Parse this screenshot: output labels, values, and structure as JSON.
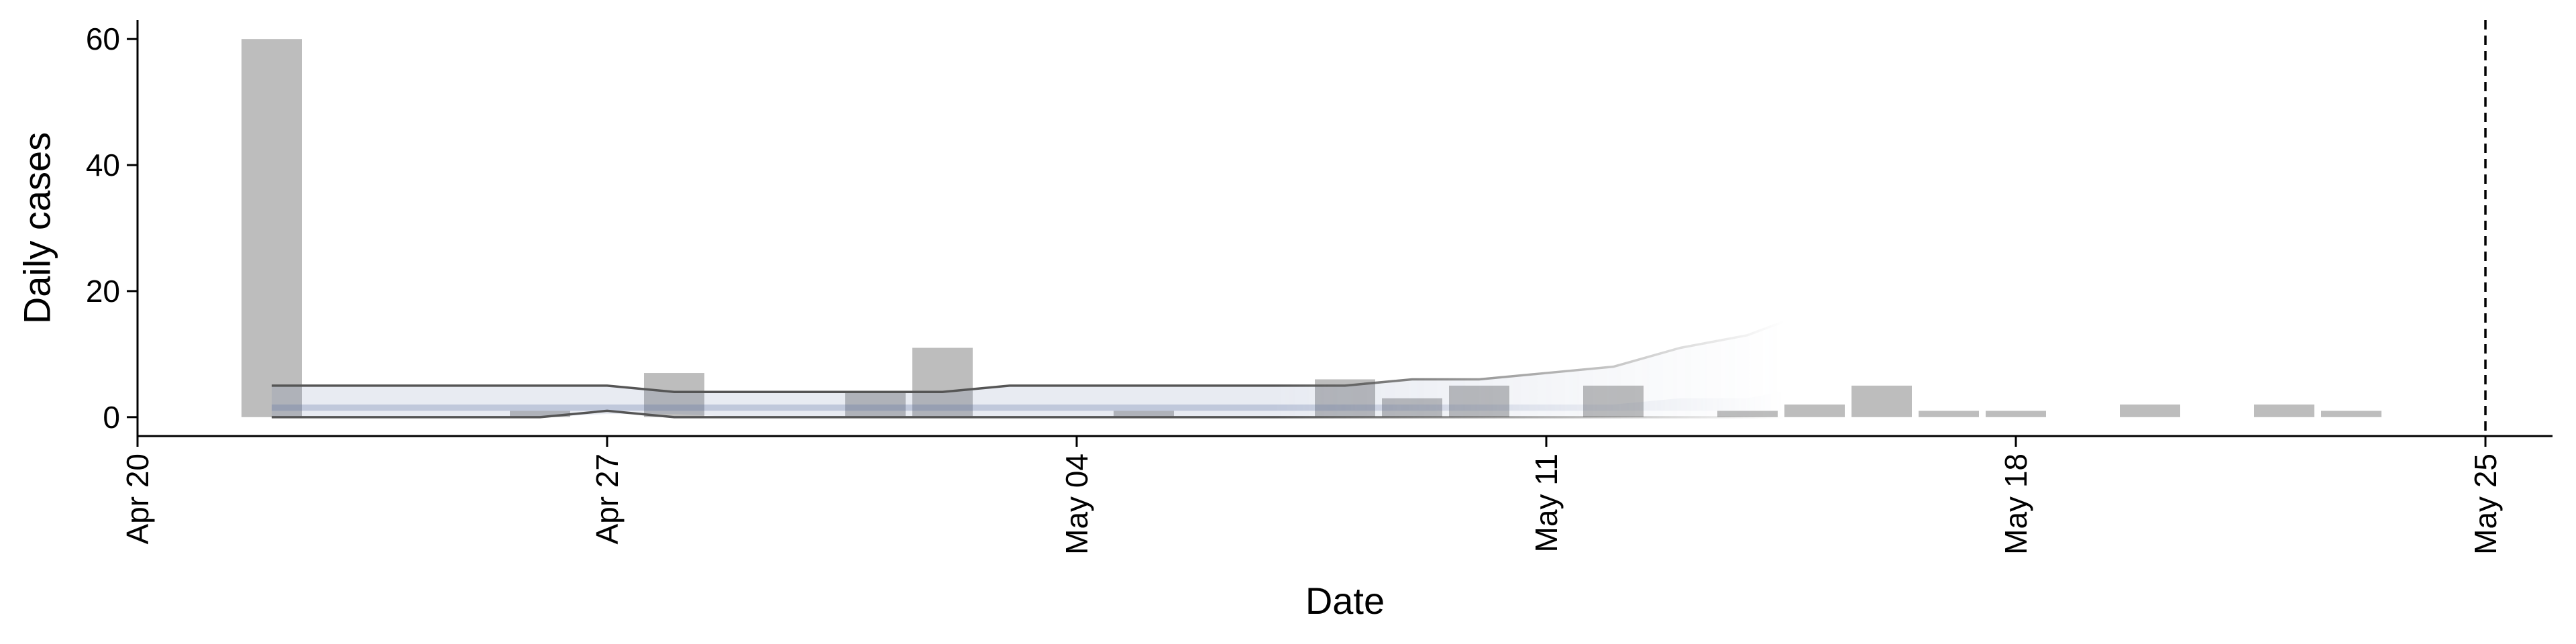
{
  "chart_data": {
    "type": "bar",
    "xlabel": "Date",
    "ylabel": "Daily cases",
    "x_range": [
      "2020-04-20",
      "2020-05-26"
    ],
    "ylim": [
      -3,
      63
    ],
    "x_ticks": [
      {
        "date": "2020-04-20",
        "label": "Apr 20"
      },
      {
        "date": "2020-04-27",
        "label": "Apr 27"
      },
      {
        "date": "2020-05-04",
        "label": "May 04"
      },
      {
        "date": "2020-05-11",
        "label": "May 11"
      },
      {
        "date": "2020-05-18",
        "label": "May 18"
      },
      {
        "date": "2020-05-25",
        "label": "May 25"
      }
    ],
    "y_ticks": [
      0,
      20,
      40,
      60
    ],
    "grid": false,
    "bar_color": "#bdbdbd",
    "bars": [
      {
        "date": "2020-04-22",
        "value": 60
      },
      {
        "date": "2020-04-26",
        "value": 1
      },
      {
        "date": "2020-04-28",
        "value": 7
      },
      {
        "date": "2020-05-01",
        "value": 4
      },
      {
        "date": "2020-05-02",
        "value": 11
      },
      {
        "date": "2020-05-05",
        "value": 1
      },
      {
        "date": "2020-05-08",
        "value": 6
      },
      {
        "date": "2020-05-09",
        "value": 3
      },
      {
        "date": "2020-05-10",
        "value": 5
      },
      {
        "date": "2020-05-12",
        "value": 5
      },
      {
        "date": "2020-05-14",
        "value": 1
      },
      {
        "date": "2020-05-15",
        "value": 2
      },
      {
        "date": "2020-05-16",
        "value": 5
      },
      {
        "date": "2020-05-17",
        "value": 1
      },
      {
        "date": "2020-05-18",
        "value": 1
      },
      {
        "date": "2020-05-20",
        "value": 2
      },
      {
        "date": "2020-05-22",
        "value": 2
      },
      {
        "date": "2020-05-23",
        "value": 1
      }
    ],
    "band_color": "#5a6ea0",
    "outer_band": {
      "x": [
        "2020-04-22",
        "2020-04-23",
        "2020-04-24",
        "2020-04-25",
        "2020-04-26",
        "2020-04-27",
        "2020-04-28",
        "2020-04-29",
        "2020-04-30",
        "2020-05-01",
        "2020-05-02",
        "2020-05-03",
        "2020-05-04",
        "2020-05-05",
        "2020-05-06",
        "2020-05-07",
        "2020-05-08",
        "2020-05-09",
        "2020-05-10",
        "2020-05-11",
        "2020-05-12",
        "2020-05-13",
        "2020-05-14",
        "2020-05-15"
      ],
      "lower": [
        0,
        0,
        0,
        0,
        0,
        0.5,
        0.5,
        0,
        0,
        0,
        0,
        0,
        0,
        0,
        0,
        0,
        0,
        0,
        0,
        0,
        0,
        0,
        0,
        0
      ],
      "upper": [
        5,
        5,
        5,
        5,
        5,
        5,
        4,
        4,
        4,
        4,
        4,
        5,
        5,
        5,
        5,
        5,
        5,
        6,
        6,
        7,
        8,
        11,
        13,
        17
      ]
    },
    "inner_band": {
      "x": [
        "2020-04-22",
        "2020-04-23",
        "2020-04-24",
        "2020-04-25",
        "2020-04-26",
        "2020-04-27",
        "2020-04-28",
        "2020-04-29",
        "2020-04-30",
        "2020-05-01",
        "2020-05-02",
        "2020-05-03",
        "2020-05-04",
        "2020-05-05",
        "2020-05-06",
        "2020-05-07",
        "2020-05-08",
        "2020-05-09",
        "2020-05-10",
        "2020-05-11",
        "2020-05-12",
        "2020-05-13",
        "2020-05-14",
        "2020-05-15"
      ],
      "lower": [
        1,
        1,
        1,
        1,
        1,
        1,
        1,
        1,
        1,
        1,
        1,
        1,
        1,
        1,
        1,
        1,
        1,
        1,
        1,
        1,
        1,
        1,
        1,
        1
      ],
      "upper": [
        2,
        2,
        2,
        2,
        2,
        2,
        2,
        2,
        2,
        2,
        2,
        2,
        2,
        2,
        2,
        2,
        2,
        2,
        2,
        2,
        2,
        3,
        3,
        5
      ]
    },
    "upper_line": {
      "x": [
        "2020-04-22",
        "2020-04-23",
        "2020-04-24",
        "2020-04-25",
        "2020-04-26",
        "2020-04-27",
        "2020-04-28",
        "2020-04-29",
        "2020-04-30",
        "2020-05-01",
        "2020-05-02",
        "2020-05-03",
        "2020-05-04",
        "2020-05-05",
        "2020-05-06",
        "2020-05-07",
        "2020-05-08",
        "2020-05-09",
        "2020-05-10",
        "2020-05-11",
        "2020-05-12",
        "2020-05-13",
        "2020-05-14",
        "2020-05-15"
      ],
      "y": [
        5,
        5,
        5,
        5,
        5,
        5,
        4,
        4,
        4,
        4,
        4,
        5,
        5,
        5,
        5,
        5,
        5,
        6,
        6,
        7,
        8,
        11,
        13,
        17
      ]
    },
    "lower_line": {
      "x": [
        "2020-04-22",
        "2020-04-23",
        "2020-04-24",
        "2020-04-25",
        "2020-04-26",
        "2020-04-27",
        "2020-04-28",
        "2020-04-29",
        "2020-04-30",
        "2020-05-01",
        "2020-05-02",
        "2020-05-03",
        "2020-05-04",
        "2020-05-05",
        "2020-05-06",
        "2020-05-07",
        "2020-05-08",
        "2020-05-09",
        "2020-05-10",
        "2020-05-11",
        "2020-05-12",
        "2020-05-13",
        "2020-05-14",
        "2020-05-15"
      ],
      "y": [
        0,
        0,
        0,
        0,
        0,
        1,
        0,
        0,
        0,
        0,
        0,
        0,
        0,
        0,
        0,
        0,
        0,
        0,
        0,
        0,
        0,
        0,
        0,
        0
      ]
    },
    "vline": {
      "date": "2020-05-25",
      "style": "dashed"
    }
  }
}
